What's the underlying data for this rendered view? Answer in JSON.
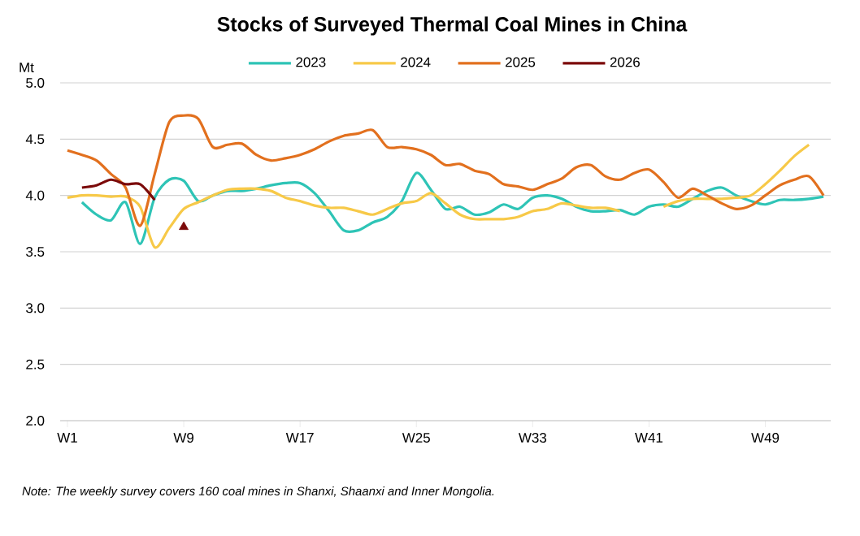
{
  "chart_data": {
    "type": "line",
    "title": "Stocks of Surveyed Thermal Coal Mines in China",
    "ylabel": "Mt",
    "annotations": [
      "Note: The weekly survey covers 160 coal mines in Shanxi, Shaanxi and Inner Mongolia."
    ],
    "categories": [
      "W1",
      null,
      null,
      null,
      null,
      null,
      null,
      null,
      "W9",
      null,
      null,
      null,
      null,
      null,
      null,
      null,
      "W17",
      null,
      null,
      null,
      null,
      null,
      null,
      null,
      "W25",
      null,
      null,
      null,
      null,
      null,
      null,
      null,
      "W33",
      null,
      null,
      null,
      null,
      null,
      null,
      null,
      "W41",
      null,
      null,
      null,
      null,
      null,
      null,
      null,
      "W49",
      null,
      null,
      null,
      null
    ],
    "ylim": [
      2,
      5
    ],
    "yticks": [
      {
        "value": 2,
        "label": "2.0"
      },
      {
        "value": 2.5,
        "label": "2.5"
      },
      {
        "value": 3,
        "label": "3.0"
      },
      {
        "value": 3.5,
        "label": "3.5"
      },
      {
        "value": 4,
        "label": "4.0"
      },
      {
        "value": 4.5,
        "label": "4.5"
      },
      {
        "value": 5,
        "label": "5.0"
      }
    ],
    "grid": "y",
    "legend": "top",
    "line_style": "solid",
    "series": [
      {
        "name": "2023",
        "color": "#2ec4b6",
        "values": [
          null,
          3.94,
          3.83,
          3.78,
          3.94,
          3.57,
          3.98,
          4.14,
          4.13,
          3.95,
          4.0,
          4.04,
          4.04,
          4.06,
          4.09,
          4.11,
          4.11,
          4.02,
          3.86,
          3.69,
          3.69,
          3.76,
          3.81,
          3.95,
          4.2,
          4.05,
          3.88,
          3.9,
          3.83,
          3.85,
          3.92,
          3.88,
          3.98,
          4.0,
          3.97,
          3.9,
          3.86,
          3.86,
          3.87,
          3.83,
          3.9,
          3.92,
          3.9,
          3.97,
          4.04,
          4.07,
          4.0,
          3.95,
          3.92,
          3.96,
          3.96,
          3.97,
          3.99
        ]
      },
      {
        "name": "2024",
        "color": "#f7c948",
        "values": [
          3.98,
          4.0,
          4.0,
          3.99,
          3.99,
          3.9,
          3.54,
          3.71,
          3.88,
          3.94,
          4.0,
          4.05,
          4.06,
          4.06,
          4.04,
          3.98,
          3.95,
          3.91,
          3.89,
          3.89,
          3.86,
          3.83,
          3.88,
          3.93,
          3.95,
          4.02,
          3.93,
          3.83,
          3.79,
          3.79,
          3.79,
          3.81,
          3.86,
          3.88,
          3.93,
          3.91,
          3.89,
          3.89,
          3.86,
          null,
          null,
          3.9,
          3.95,
          3.97,
          3.97,
          3.97,
          3.98,
          4.0,
          4.1,
          4.22,
          4.35,
          4.45,
          null
        ]
      },
      {
        "name": "2025",
        "color": "#e2701e",
        "values": [
          4.4,
          4.36,
          4.31,
          4.19,
          4.07,
          3.73,
          4.19,
          4.65,
          4.71,
          4.68,
          4.43,
          4.45,
          4.46,
          4.36,
          4.31,
          4.33,
          4.36,
          4.41,
          4.48,
          4.53,
          4.55,
          4.58,
          4.43,
          4.43,
          4.41,
          4.36,
          4.27,
          4.28,
          4.22,
          4.19,
          4.1,
          4.08,
          4.05,
          4.1,
          4.15,
          4.25,
          4.27,
          4.17,
          4.14,
          4.2,
          4.23,
          4.12,
          3.98,
          4.06,
          4.0,
          3.93,
          3.88,
          3.91,
          4.0,
          4.09,
          4.14,
          4.17,
          4.0
        ]
      },
      {
        "name": "2026",
        "color": "#7b0a0a",
        "values": [
          null,
          4.07,
          4.09,
          4.14,
          4.1,
          4.1,
          3.96,
          null,
          null,
          null,
          null,
          null,
          null,
          null,
          null,
          null,
          null,
          null,
          null,
          null,
          null,
          null,
          null,
          null,
          null,
          null,
          null,
          null,
          null,
          null,
          null,
          null,
          null,
          null,
          null,
          null,
          null,
          null,
          null,
          null,
          null,
          null,
          null,
          null,
          null,
          null,
          null,
          null,
          null,
          null,
          null,
          null,
          null
        ]
      },
      {
        "type": "scatter",
        "color": "#7b0a0a",
        "marker": "triangle",
        "values": [
          null,
          null,
          null,
          null,
          null,
          null,
          null,
          null,
          3.72,
          null,
          null,
          null,
          null,
          null,
          null,
          null,
          null,
          null,
          null,
          null,
          null,
          null,
          null,
          null,
          null,
          null,
          null,
          null,
          null,
          null,
          null,
          null,
          null,
          null,
          null,
          null,
          null,
          null,
          null,
          null,
          null,
          null,
          null,
          null,
          null,
          null,
          null,
          null,
          null,
          null,
          null,
          null,
          null
        ]
      }
    ]
  }
}
